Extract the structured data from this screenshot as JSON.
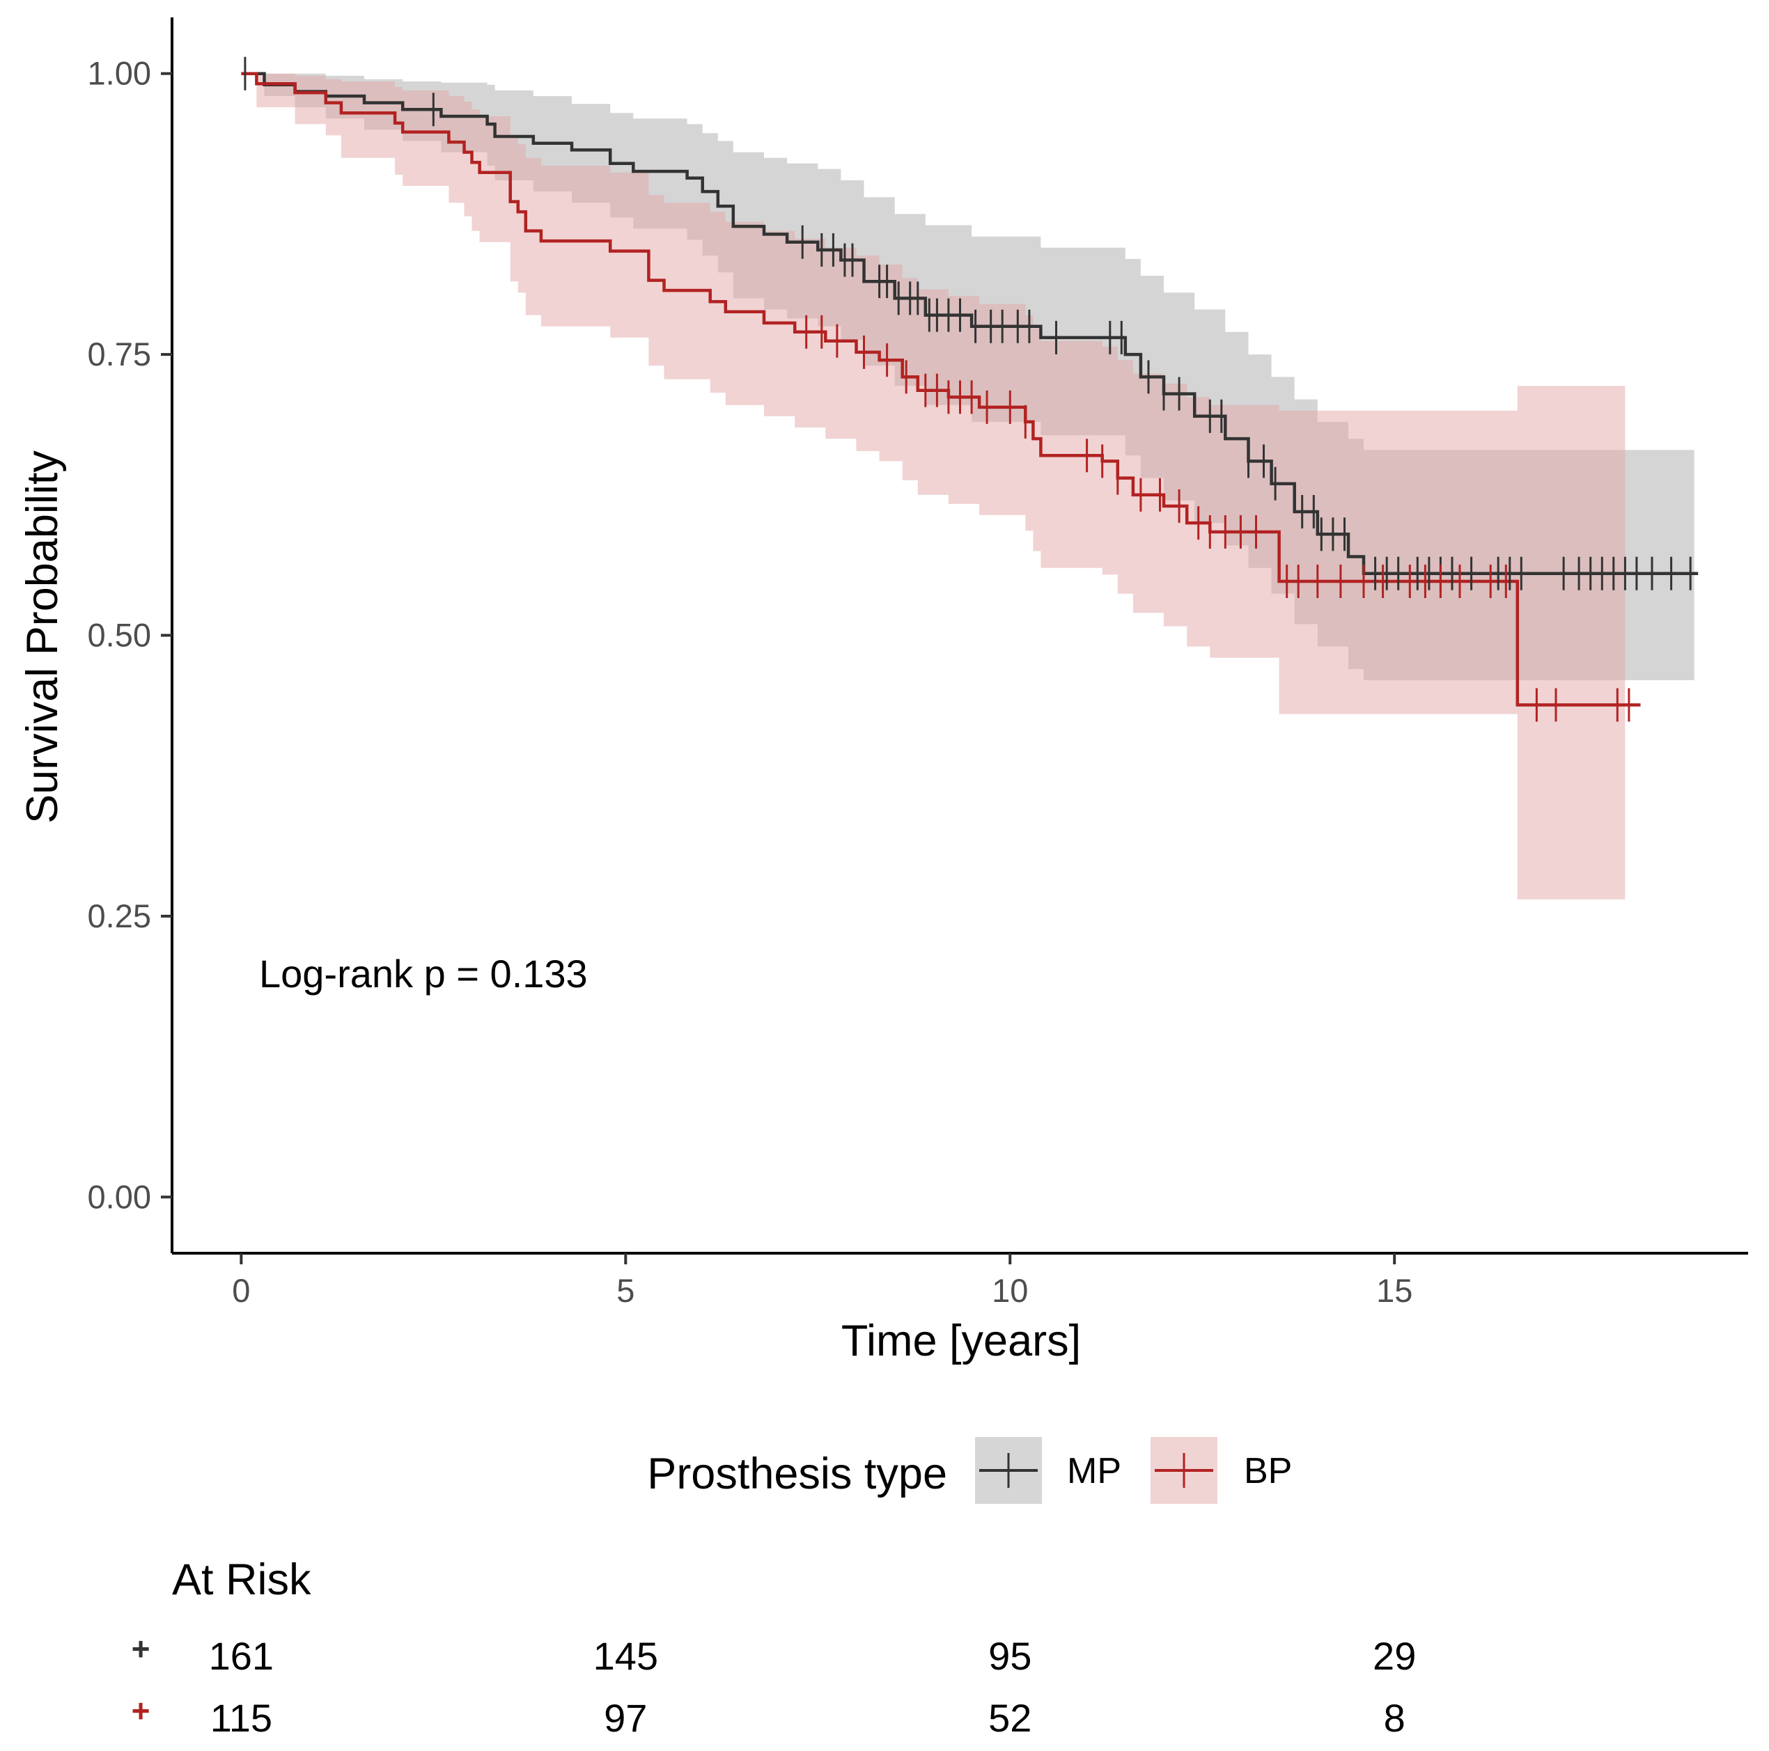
{
  "chart_data": {
    "type": "line",
    "subtype": "kaplan-meier",
    "xlabel": "Time [years]",
    "ylabel": "Survival Probability",
    "xlim": [
      -0.9,
      19.6
    ],
    "ylim": [
      -0.05,
      1.05
    ],
    "x_ticks": [
      0,
      5,
      10,
      15
    ],
    "x_tick_labels": [
      "0",
      "5",
      "10",
      "15"
    ],
    "y_ticks": [
      0,
      0.25,
      0.5,
      0.75,
      1.0
    ],
    "y_tick_labels": [
      "0.00",
      "0.25",
      "0.50",
      "0.75",
      "1.00"
    ],
    "annotation": "Log-rank p = 0.133",
    "legend": {
      "title": "Prosthesis type",
      "position": "bottom",
      "entries": [
        {
          "label": "MP",
          "color": "#333333",
          "fill": "#d6d6d6"
        },
        {
          "label": "BP",
          "color": "#b22222",
          "fill": "#f0d3d3"
        }
      ]
    },
    "series": [
      {
        "name": "MP",
        "color": "#333333",
        "fill_color": "#bfbfbf",
        "steps": [
          [
            0,
            1.0
          ],
          [
            0.3,
            0.99
          ],
          [
            0.7,
            0.984
          ],
          [
            1.1,
            0.98
          ],
          [
            1.6,
            0.974
          ],
          [
            2.1,
            0.968
          ],
          [
            2.6,
            0.962
          ],
          [
            3.2,
            0.955
          ],
          [
            3.3,
            0.944
          ],
          [
            3.8,
            0.938
          ],
          [
            4.3,
            0.932
          ],
          [
            4.8,
            0.92
          ],
          [
            5.1,
            0.913
          ],
          [
            5.8,
            0.907
          ],
          [
            6.0,
            0.895
          ],
          [
            6.2,
            0.882
          ],
          [
            6.4,
            0.864
          ],
          [
            6.8,
            0.857
          ],
          [
            7.1,
            0.85
          ],
          [
            7.5,
            0.843
          ],
          [
            7.8,
            0.834
          ],
          [
            8.1,
            0.815
          ],
          [
            8.5,
            0.8
          ],
          [
            8.9,
            0.785
          ],
          [
            9.5,
            0.775
          ],
          [
            10.4,
            0.765
          ],
          [
            11.5,
            0.75
          ],
          [
            11.7,
            0.73
          ],
          [
            12.0,
            0.715
          ],
          [
            12.4,
            0.695
          ],
          [
            12.8,
            0.675
          ],
          [
            13.1,
            0.655
          ],
          [
            13.4,
            0.635
          ],
          [
            13.7,
            0.61
          ],
          [
            14.0,
            0.59
          ],
          [
            14.4,
            0.57
          ],
          [
            14.6,
            0.555
          ],
          [
            18.95,
            0.555
          ]
        ],
        "upper": [
          [
            0,
            1.0
          ],
          [
            0.3,
            1.0
          ],
          [
            0.7,
            1.0
          ],
          [
            1.1,
            0.998
          ],
          [
            1.6,
            0.995
          ],
          [
            2.1,
            0.993
          ],
          [
            2.6,
            0.992
          ],
          [
            3.2,
            0.99
          ],
          [
            3.3,
            0.985
          ],
          [
            3.8,
            0.98
          ],
          [
            4.3,
            0.973
          ],
          [
            4.8,
            0.965
          ],
          [
            5.1,
            0.96
          ],
          [
            5.8,
            0.955
          ],
          [
            6.0,
            0.947
          ],
          [
            6.2,
            0.94
          ],
          [
            6.4,
            0.93
          ],
          [
            6.8,
            0.925
          ],
          [
            7.1,
            0.92
          ],
          [
            7.5,
            0.915
          ],
          [
            7.8,
            0.905
          ],
          [
            8.1,
            0.89
          ],
          [
            8.5,
            0.875
          ],
          [
            8.9,
            0.865
          ],
          [
            9.5,
            0.855
          ],
          [
            10.4,
            0.845
          ],
          [
            11.5,
            0.835
          ],
          [
            11.7,
            0.82
          ],
          [
            12.0,
            0.805
          ],
          [
            12.4,
            0.79
          ],
          [
            12.8,
            0.77
          ],
          [
            13.1,
            0.75
          ],
          [
            13.4,
            0.73
          ],
          [
            13.7,
            0.71
          ],
          [
            14.0,
            0.69
          ],
          [
            14.4,
            0.675
          ],
          [
            14.6,
            0.665
          ],
          [
            18.9,
            0.665
          ]
        ],
        "lower": [
          [
            0,
            1.0
          ],
          [
            0.3,
            0.98
          ],
          [
            0.7,
            0.97
          ],
          [
            1.1,
            0.96
          ],
          [
            1.6,
            0.95
          ],
          [
            2.1,
            0.94
          ],
          [
            2.6,
            0.93
          ],
          [
            3.2,
            0.918
          ],
          [
            3.3,
            0.905
          ],
          [
            3.8,
            0.895
          ],
          [
            4.3,
            0.885
          ],
          [
            4.8,
            0.872
          ],
          [
            5.1,
            0.862
          ],
          [
            5.8,
            0.852
          ],
          [
            6.0,
            0.838
          ],
          [
            6.2,
            0.823
          ],
          [
            6.4,
            0.8
          ],
          [
            6.8,
            0.79
          ],
          [
            7.1,
            0.782
          ],
          [
            7.5,
            0.775
          ],
          [
            7.8,
            0.763
          ],
          [
            8.1,
            0.74
          ],
          [
            8.5,
            0.722
          ],
          [
            8.9,
            0.705
          ],
          [
            9.5,
            0.69
          ],
          [
            10.4,
            0.678
          ],
          [
            11.5,
            0.66
          ],
          [
            11.7,
            0.64
          ],
          [
            12.0,
            0.62
          ],
          [
            12.4,
            0.6
          ],
          [
            12.8,
            0.58
          ],
          [
            13.1,
            0.56
          ],
          [
            13.4,
            0.537
          ],
          [
            13.7,
            0.51
          ],
          [
            14.0,
            0.49
          ],
          [
            14.4,
            0.47
          ],
          [
            14.6,
            0.46
          ],
          [
            18.9,
            0.46
          ]
        ],
        "censors": [
          0.05,
          2.5,
          7.3,
          7.55,
          7.7,
          7.85,
          7.95,
          8.3,
          8.4,
          8.55,
          8.7,
          8.8,
          8.95,
          9.05,
          9.2,
          9.35,
          9.55,
          9.75,
          9.9,
          10.1,
          10.25,
          10.6,
          11.3,
          11.45,
          11.8,
          12.0,
          12.2,
          12.6,
          12.75,
          13.1,
          13.3,
          13.45,
          13.8,
          13.95,
          14.05,
          14.2,
          14.35,
          14.75,
          14.9,
          15.05,
          15.3,
          15.45,
          15.6,
          15.75,
          16.0,
          16.35,
          16.5,
          16.65,
          17.2,
          17.4,
          17.55,
          17.7,
          17.85,
          18.0,
          18.15,
          18.35,
          18.6,
          18.85
        ]
      },
      {
        "name": "BP",
        "color": "#b22222",
        "fill_color": "#e3a8a8",
        "steps": [
          [
            0,
            1.0
          ],
          [
            0.2,
            0.991
          ],
          [
            0.7,
            0.983
          ],
          [
            1.1,
            0.974
          ],
          [
            1.3,
            0.965
          ],
          [
            2.0,
            0.956
          ],
          [
            2.1,
            0.948
          ],
          [
            2.7,
            0.939
          ],
          [
            2.9,
            0.93
          ],
          [
            3.0,
            0.921
          ],
          [
            3.1,
            0.912
          ],
          [
            3.5,
            0.886
          ],
          [
            3.6,
            0.877
          ],
          [
            3.7,
            0.86
          ],
          [
            3.9,
            0.851
          ],
          [
            4.8,
            0.842
          ],
          [
            5.3,
            0.816
          ],
          [
            5.5,
            0.807
          ],
          [
            6.1,
            0.797
          ],
          [
            6.3,
            0.788
          ],
          [
            6.8,
            0.778
          ],
          [
            7.2,
            0.77
          ],
          [
            7.6,
            0.762
          ],
          [
            8.0,
            0.752
          ],
          [
            8.3,
            0.745
          ],
          [
            8.6,
            0.73
          ],
          [
            8.8,
            0.718
          ],
          [
            9.2,
            0.712
          ],
          [
            9.6,
            0.703
          ],
          [
            10.2,
            0.69
          ],
          [
            10.3,
            0.675
          ],
          [
            10.4,
            0.66
          ],
          [
            11.2,
            0.655
          ],
          [
            11.4,
            0.64
          ],
          [
            11.6,
            0.625
          ],
          [
            12.0,
            0.615
          ],
          [
            12.3,
            0.6
          ],
          [
            12.6,
            0.592
          ],
          [
            13.5,
            0.548
          ],
          [
            16.6,
            0.548
          ],
          [
            16.6,
            0.438
          ],
          [
            18.2,
            0.438
          ]
        ],
        "upper": [
          [
            0,
            1.0
          ],
          [
            0.2,
            1.0
          ],
          [
            0.7,
            0.998
          ],
          [
            1.1,
            0.995
          ],
          [
            1.3,
            0.993
          ],
          [
            2.0,
            0.988
          ],
          [
            2.1,
            0.985
          ],
          [
            2.7,
            0.98
          ],
          [
            2.9,
            0.975
          ],
          [
            3.0,
            0.968
          ],
          [
            3.1,
            0.962
          ],
          [
            3.5,
            0.943
          ],
          [
            3.6,
            0.937
          ],
          [
            3.7,
            0.925
          ],
          [
            3.9,
            0.918
          ],
          [
            4.8,
            0.912
          ],
          [
            5.3,
            0.892
          ],
          [
            5.5,
            0.885
          ],
          [
            6.1,
            0.877
          ],
          [
            6.3,
            0.868
          ],
          [
            6.8,
            0.86
          ],
          [
            7.2,
            0.853
          ],
          [
            7.6,
            0.845
          ],
          [
            8.0,
            0.838
          ],
          [
            8.3,
            0.83
          ],
          [
            8.6,
            0.818
          ],
          [
            8.8,
            0.808
          ],
          [
            9.2,
            0.802
          ],
          [
            9.6,
            0.795
          ],
          [
            10.2,
            0.785
          ],
          [
            10.3,
            0.773
          ],
          [
            10.4,
            0.762
          ],
          [
            11.2,
            0.757
          ],
          [
            11.4,
            0.745
          ],
          [
            11.6,
            0.733
          ],
          [
            12.0,
            0.724
          ],
          [
            12.3,
            0.712
          ],
          [
            12.6,
            0.705
          ],
          [
            13.5,
            0.7
          ],
          [
            16.6,
            0.722
          ],
          [
            18.0,
            0.722
          ]
        ],
        "lower": [
          [
            0,
            1.0
          ],
          [
            0.2,
            0.97
          ],
          [
            0.7,
            0.955
          ],
          [
            1.1,
            0.945
          ],
          [
            1.3,
            0.925
          ],
          [
            2.0,
            0.91
          ],
          [
            2.1,
            0.9
          ],
          [
            2.7,
            0.885
          ],
          [
            2.9,
            0.873
          ],
          [
            3.0,
            0.86
          ],
          [
            3.1,
            0.85
          ],
          [
            3.5,
            0.815
          ],
          [
            3.6,
            0.805
          ],
          [
            3.7,
            0.785
          ],
          [
            3.9,
            0.775
          ],
          [
            4.8,
            0.765
          ],
          [
            5.3,
            0.74
          ],
          [
            5.5,
            0.728
          ],
          [
            6.1,
            0.716
          ],
          [
            6.3,
            0.705
          ],
          [
            6.8,
            0.695
          ],
          [
            7.2,
            0.685
          ],
          [
            7.6,
            0.675
          ],
          [
            8.0,
            0.664
          ],
          [
            8.3,
            0.655
          ],
          [
            8.6,
            0.638
          ],
          [
            8.8,
            0.625
          ],
          [
            9.2,
            0.617
          ],
          [
            9.6,
            0.607
          ],
          [
            10.2,
            0.593
          ],
          [
            10.3,
            0.575
          ],
          [
            10.4,
            0.56
          ],
          [
            11.2,
            0.554
          ],
          [
            11.4,
            0.537
          ],
          [
            11.6,
            0.52
          ],
          [
            12.0,
            0.508
          ],
          [
            12.3,
            0.49
          ],
          [
            12.6,
            0.48
          ],
          [
            13.5,
            0.43
          ],
          [
            16.6,
            0.265
          ],
          [
            18.0,
            0.265
          ]
        ],
        "censors": [
          7.35,
          7.55,
          7.75,
          8.1,
          8.4,
          8.65,
          8.9,
          9.05,
          9.2,
          9.35,
          9.5,
          9.7,
          10.0,
          10.2,
          11.0,
          11.2,
          11.4,
          11.7,
          11.95,
          12.2,
          12.45,
          12.6,
          12.8,
          13.0,
          13.2,
          13.6,
          13.75,
          14.0,
          14.3,
          14.6,
          14.85,
          15.2,
          15.4,
          15.6,
          15.85,
          16.25,
          16.45,
          16.85,
          17.1,
          17.9,
          18.05
        ]
      }
    ],
    "risk_table": {
      "title": "At Risk",
      "times": [
        0,
        5,
        10,
        15
      ],
      "rows": [
        {
          "name": "MP",
          "color": "#333333",
          "marker": "+",
          "counts": [
            "161",
            "145",
            "95",
            "29"
          ]
        },
        {
          "name": "BP",
          "color": "#b22222",
          "marker": "+",
          "counts": [
            "115",
            "97",
            "52",
            "8"
          ]
        }
      ]
    }
  }
}
